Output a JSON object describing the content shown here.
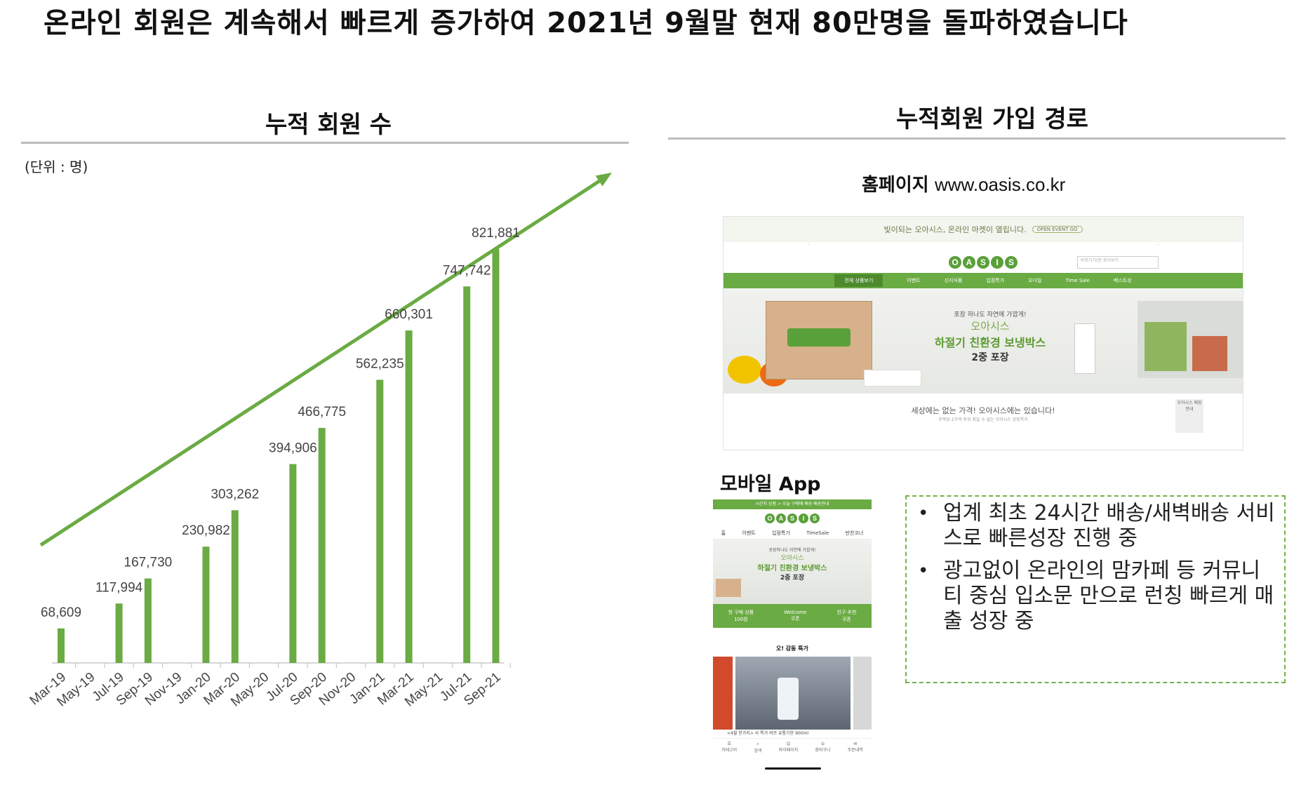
{
  "headline": "온라인 회원은 계속해서 빠르게 증가하여 2021년 9월말 현재 80만명을 돌파하였습니다",
  "left": {
    "title": "누적 회원 수",
    "unit_note": "(단위 : 명)"
  },
  "right": {
    "title": "누적회원 가입 경로",
    "homepage_label": "홈페이지",
    "homepage_url": "www.oasis.co.kr",
    "app_label": "모바일 App",
    "bullets": [
      "업계 최초 24시간 배송/새벽배송 서비스로 빠른성장 진행 중",
      "광고없이 온라인의 맘카페 등 커뮤니티 중심 입소문 만으로 런칭 빠르게 매출 성장 중"
    ]
  },
  "website": {
    "promo": "빛이되는 오아시스, 온라인 마켓이 열립니다.",
    "promo_button": "OPEN EVENT GO",
    "logo": "OASIS",
    "search_placeholder": "바로가기(현 찾아보기",
    "nav": [
      "전체 상품보기",
      "이벤트",
      "신지식품",
      "입점특가",
      "오다일",
      "Time Sale",
      "베스트상"
    ],
    "banner_small": "포장 하나도 자연에 가깝게!",
    "banner_brand": "오아시스",
    "banner_green": "하절기 친환경 보냉박스",
    "banner_bold": "2중 포장",
    "bottom_text": "세상에는 없는 가격! 오아시스에는 있습니다!",
    "bottom_sub": "주목당 2가격 주위 최일 수 없는 오아시스 감동특가",
    "side_badge": "오아시스 매장안내"
  },
  "app": {
    "top_bar": "시간지 상품 > 오늘 구매에 배송 배송안내",
    "logo": "OASIS",
    "tabs": [
      "홈",
      "이벤트",
      "입점특가",
      "TimeSale",
      "반찬코너"
    ],
    "banner_small": "포장하나도 자연에 가깝게!",
    "banner_brand": "오아시스",
    "banner_green": "하절기 친환경 보냉박스",
    "banner_bold": "2중 포장",
    "green_items": [
      {
        "top": "첫 구매 상품",
        "bottom": "100원"
      },
      {
        "top": "Welcome",
        "bottom": "쿠폰"
      },
      {
        "top": "친구 추천",
        "bottom": "쿠폰"
      }
    ],
    "section": "오! 감동 특가",
    "caption": "<4월 한가지> 사 특가 바르 유통기한 900ml",
    "bottom_nav": [
      "카테고리",
      "검색",
      "마이페이지",
      "장바구니",
      "주문내역"
    ]
  },
  "chart_data": {
    "type": "bar",
    "title": "누적 회원 수",
    "unit": "(단위 : 명)",
    "x_ticks": [
      "Mar-19",
      "May-19",
      "Jul-19",
      "Sep-19",
      "Nov-19",
      "Jan-20",
      "Mar-20",
      "May-20",
      "Jul-20",
      "Sep-20",
      "Nov-20",
      "Jan-21",
      "Mar-21",
      "May-21",
      "Jul-21",
      "Sep-21"
    ],
    "categories": [
      "Mar-19",
      "Jul-19",
      "Sep-19",
      "Jan-20",
      "Mar-20",
      "Jul-20",
      "Sep-20",
      "Jan-21",
      "Mar-21",
      "Jul-21",
      "Sep-21"
    ],
    "values": [
      68609,
      117994,
      167730,
      230982,
      303262,
      394906,
      466775,
      562235,
      660301,
      747742,
      821881
    ],
    "labels": [
      "68,609",
      "117,994",
      "167,730",
      "230,982",
      "303,262",
      "394,906",
      "466,775",
      "562,235",
      "660,301",
      "747,742",
      "821,881"
    ],
    "ylim": [
      0,
      900000
    ],
    "bar_color": "#6aab43",
    "trend_arrow": true,
    "grid": false
  }
}
